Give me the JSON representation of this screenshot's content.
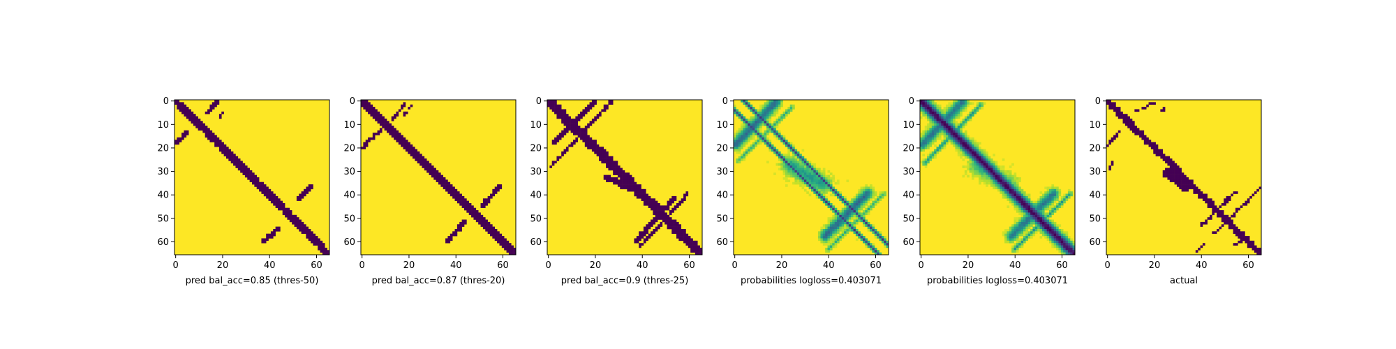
{
  "chart_data": [
    {
      "type": "heatmap",
      "xlabel": "pred bal_acc=0.85 (thres-50)",
      "xticks": [
        0,
        20,
        40,
        60
      ],
      "yticks": [
        0,
        10,
        20,
        30,
        40,
        50,
        60
      ],
      "xlim": [
        0,
        66
      ],
      "ylim": [
        66,
        0
      ],
      "colors": {
        "low": "#440154",
        "high": "#fde725"
      },
      "features": [
        {
          "kind": "main_diagonal",
          "from": [
            0,
            0
          ],
          "to": [
            66,
            66
          ],
          "width": 3.2
        },
        {
          "kind": "blob",
          "from": [
            14,
            5
          ],
          "to": [
            18,
            1
          ],
          "width": 1.6
        },
        {
          "kind": "blob",
          "from": [
            19,
            7
          ],
          "to": [
            20,
            6
          ],
          "width": 1.0
        },
        {
          "kind": "blob",
          "from": [
            1,
            18
          ],
          "to": [
            6,
            13
          ],
          "width": 1.6
        },
        {
          "kind": "blob",
          "from": [
            53,
            42
          ],
          "to": [
            58,
            37
          ],
          "width": 2.2
        },
        {
          "kind": "blob",
          "from": [
            38,
            60
          ],
          "to": [
            44,
            55
          ],
          "width": 2.0
        }
      ]
    },
    {
      "type": "heatmap",
      "xlabel": "pred bal_acc=0.87 (thres-20)",
      "xticks": [
        0,
        20,
        40,
        60
      ],
      "yticks": [
        0,
        10,
        20,
        30,
        40,
        50,
        60
      ],
      "xlim": [
        0,
        66
      ],
      "ylim": [
        66,
        0
      ],
      "colors": {
        "low": "#440154",
        "high": "#fde725"
      },
      "features": [
        {
          "kind": "main_diagonal",
          "from": [
            0,
            0
          ],
          "to": [
            66,
            66
          ],
          "width": 3.6
        },
        {
          "kind": "line",
          "from": [
            13,
            9
          ],
          "to": [
            19,
            1
          ],
          "width": 1.0
        },
        {
          "kind": "line",
          "from": [
            18,
            7
          ],
          "to": [
            22,
            2
          ],
          "width": 0.9
        },
        {
          "kind": "blob",
          "from": [
            1,
            20
          ],
          "to": [
            8,
            13
          ],
          "width": 1.4
        },
        {
          "kind": "blob",
          "from": [
            52,
            45
          ],
          "to": [
            59,
            37
          ],
          "width": 2.2
        },
        {
          "kind": "blob",
          "from": [
            37,
            60
          ],
          "to": [
            44,
            52
          ],
          "width": 2.2
        }
      ]
    },
    {
      "type": "heatmap",
      "xlabel": "pred bal_acc=0.9 (thres-25)",
      "xticks": [
        0,
        20,
        40,
        60
      ],
      "yticks": [
        0,
        10,
        20,
        30,
        40,
        50,
        60
      ],
      "xlim": [
        0,
        66
      ],
      "ylim": [
        66,
        0
      ],
      "colors": {
        "low": "#440154",
        "high": "#fde725"
      },
      "features": [
        {
          "kind": "main_diagonal",
          "from": [
            0,
            0
          ],
          "to": [
            66,
            66
          ],
          "width": 4.2
        },
        {
          "kind": "blob",
          "from": [
            3,
            18
          ],
          "to": [
            20,
            1
          ],
          "width": 2.0
        },
        {
          "kind": "line",
          "from": [
            2,
            28
          ],
          "to": [
            27,
            1
          ],
          "width": 1.2
        },
        {
          "kind": "blob",
          "from": [
            38,
            60
          ],
          "to": [
            54,
            42
          ],
          "width": 2.2
        },
        {
          "kind": "line",
          "from": [
            40,
            62
          ],
          "to": [
            60,
            40
          ],
          "width": 1.2
        },
        {
          "kind": "blob",
          "from": [
            25,
            33
          ],
          "to": [
            36,
            38
          ],
          "width": 2.6
        }
      ]
    },
    {
      "type": "heatmap",
      "xlabel": "probabilities logloss=0.403071",
      "xticks": [
        0,
        20,
        40,
        60
      ],
      "yticks": [
        0,
        10,
        20,
        30,
        40,
        50,
        60
      ],
      "xlim": [
        0,
        66
      ],
      "ylim": [
        66,
        0
      ],
      "colormap": "viridis",
      "features": [
        {
          "kind": "line",
          "from": [
            0,
            4
          ],
          "to": [
            62,
            66
          ],
          "width": 0.9,
          "strength": 0.8
        },
        {
          "kind": "line",
          "from": [
            4,
            0
          ],
          "to": [
            66,
            62
          ],
          "width": 0.9,
          "strength": 0.8
        },
        {
          "kind": "blob",
          "from": [
            1,
            19
          ],
          "to": [
            18,
            1
          ],
          "width": 2.6,
          "strength": 0.65
        },
        {
          "kind": "blob",
          "from": [
            39,
            58
          ],
          "to": [
            57,
            40
          ],
          "width": 2.6,
          "strength": 0.65
        },
        {
          "kind": "blob",
          "from": [
            24,
            28
          ],
          "to": [
            38,
            36
          ],
          "width": 4.0,
          "strength": 0.45
        },
        {
          "kind": "line",
          "from": [
            2,
            26
          ],
          "to": [
            25,
            3
          ],
          "width": 1.0,
          "strength": 0.35
        },
        {
          "kind": "line",
          "from": [
            40,
            64
          ],
          "to": [
            64,
            40
          ],
          "width": 1.0,
          "strength": 0.35
        }
      ]
    },
    {
      "type": "heatmap",
      "xlabel": "probabilities logloss=0.403071",
      "xticks": [
        0,
        20,
        40,
        60
      ],
      "yticks": [
        0,
        10,
        20,
        30,
        40,
        50,
        60
      ],
      "xlim": [
        0,
        66
      ],
      "ylim": [
        66,
        0
      ],
      "colormap": "viridis",
      "features": [
        {
          "kind": "main_diagonal",
          "from": [
            0,
            0
          ],
          "to": [
            66,
            66
          ],
          "width": 2.8,
          "strength": 1.0
        },
        {
          "kind": "blob",
          "from": [
            1,
            19
          ],
          "to": [
            18,
            1
          ],
          "width": 2.6,
          "strength": 0.6
        },
        {
          "kind": "line",
          "from": [
            2,
            27
          ],
          "to": [
            26,
            2
          ],
          "width": 1.0,
          "strength": 0.45
        },
        {
          "kind": "blob",
          "from": [
            39,
            58
          ],
          "to": [
            57,
            40
          ],
          "width": 2.6,
          "strength": 0.6
        },
        {
          "kind": "line",
          "from": [
            40,
            64
          ],
          "to": [
            64,
            40
          ],
          "width": 1.0,
          "strength": 0.45
        },
        {
          "kind": "blob",
          "from": [
            24,
            28
          ],
          "to": [
            38,
            36
          ],
          "width": 4.0,
          "strength": 0.35
        }
      ]
    },
    {
      "type": "heatmap",
      "xlabel": "actual",
      "xticks": [
        0,
        20,
        40,
        60
      ],
      "yticks": [
        0,
        10,
        20,
        30,
        40,
        50,
        60
      ],
      "xlim": [
        0,
        66
      ],
      "ylim": [
        66,
        0
      ],
      "colors": {
        "low": "#440154",
        "high": "#fde725"
      },
      "features": [
        {
          "kind": "main_diagonal",
          "from": [
            0,
            0
          ],
          "to": [
            66,
            66
          ],
          "width": 2.8
        },
        {
          "kind": "blob",
          "from": [
            26,
            31
          ],
          "to": [
            34,
            37
          ],
          "width": 4.2
        },
        {
          "kind": "blob",
          "from": [
            1,
            19
          ],
          "to": [
            5,
            14
          ],
          "width": 1.4
        },
        {
          "kind": "blob",
          "from": [
            40,
            54
          ],
          "to": [
            55,
            39
          ],
          "width": 1.2
        },
        {
          "kind": "blob",
          "from": [
            46,
            57
          ],
          "to": [
            66,
            37
          ],
          "width": 1.0
        },
        {
          "kind": "blob",
          "from": [
            13,
            5
          ],
          "to": [
            20,
            1
          ],
          "width": 1.0
        },
        {
          "kind": "blob",
          "from": [
            24,
            5
          ],
          "to": [
            25,
            3
          ],
          "width": 0.9
        },
        {
          "kind": "blob",
          "from": [
            1,
            31
          ],
          "to": [
            3,
            26
          ],
          "width": 0.8
        },
        {
          "kind": "blob",
          "from": [
            38,
            65
          ],
          "to": [
            42,
            61
          ],
          "width": 0.9
        },
        {
          "kind": "blob",
          "from": [
            54,
            62
          ],
          "to": [
            58,
            60
          ],
          "width": 0.9
        }
      ]
    }
  ]
}
